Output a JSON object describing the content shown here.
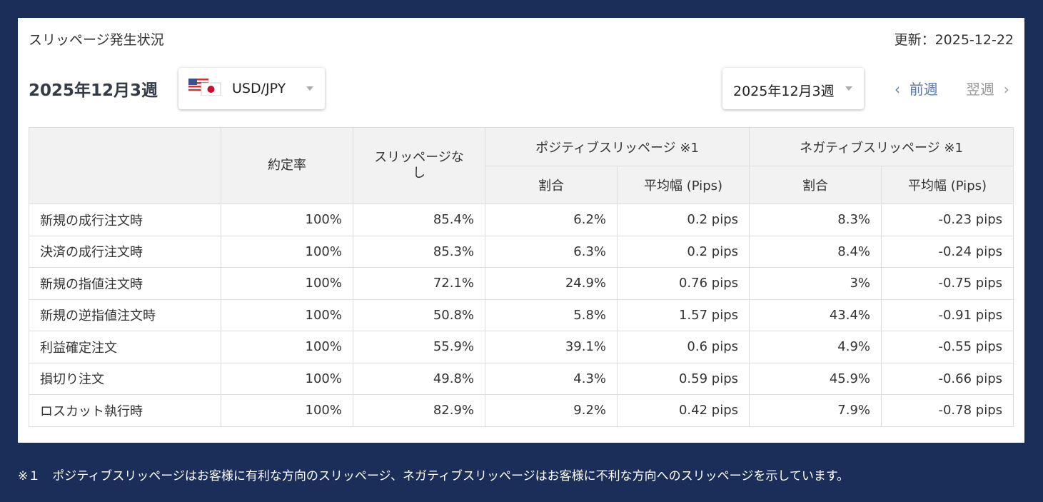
{
  "header": {
    "title": "スリッページ発生状況",
    "updated": "更新：2025-12-22"
  },
  "controls": {
    "week_label": "2025年12月3週",
    "pair": "USD/JPY",
    "week_select": "2025年12月3週",
    "prev": "前週",
    "next": "翌週"
  },
  "table": {
    "columns": [
      "約定率",
      "スリッページなし"
    ],
    "groups": [
      {
        "label": "ポジティブスリッページ ※1",
        "subcolumns": [
          "割合",
          "平均幅 (Pips)"
        ]
      },
      {
        "label": "ネガティブスリッページ ※1",
        "subcolumns": [
          "割合",
          "平均幅 (Pips)"
        ]
      }
    ],
    "rows": [
      [
        "新規の成行注文時",
        "100%",
        "85.4%",
        "6.2%",
        "0.2 pips",
        "8.3%",
        "-0.23 pips"
      ],
      [
        "決済の成行注文時",
        "100%",
        "85.3%",
        "6.3%",
        "0.2 pips",
        "8.4%",
        "-0.24 pips"
      ],
      [
        "新規の指値注文時",
        "100%",
        "72.1%",
        "24.9%",
        "0.76 pips",
        "3%",
        "-0.75 pips"
      ],
      [
        "新規の逆指値注文時",
        "100%",
        "50.8%",
        "5.8%",
        "1.57 pips",
        "43.4%",
        "-0.91 pips"
      ],
      [
        "利益確定注文",
        "100%",
        "55.9%",
        "39.1%",
        "0.6 pips",
        "4.9%",
        "-0.55 pips"
      ],
      [
        "損切り注文",
        "100%",
        "49.8%",
        "4.3%",
        "0.59 pips",
        "45.9%",
        "-0.66 pips"
      ],
      [
        "ロスカット執行時",
        "100%",
        "82.9%",
        "9.2%",
        "0.42 pips",
        "7.9%",
        "-0.78 pips"
      ]
    ]
  },
  "footnote": "※１　ポジティブスリッページはお客様に有利な方向のスリッページ、ネガティブスリッページはお客様に不利な方向へのスリッページを示しています。"
}
